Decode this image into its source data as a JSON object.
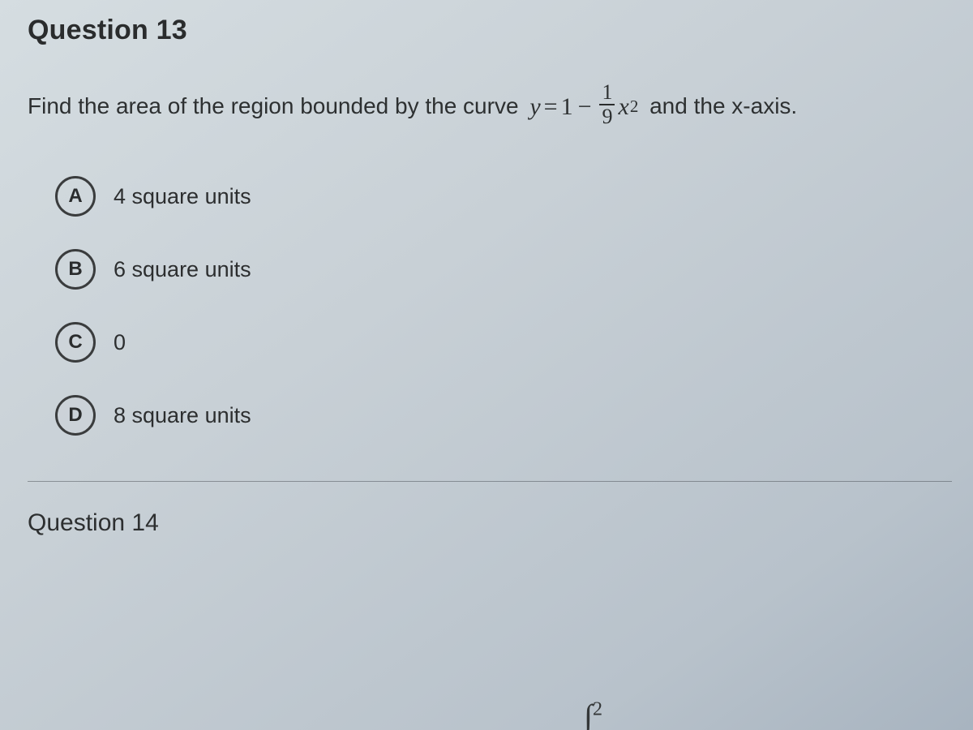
{
  "question13": {
    "title": "Question 13",
    "prompt_pre": "Find the area of the region bounded by the curve ",
    "equation": {
      "lhs_var": "y",
      "equals": "=",
      "one": "1",
      "minus": "−",
      "frac_num": "1",
      "frac_den": "9",
      "x": "x",
      "exp": "2"
    },
    "prompt_post": " and the x-axis.",
    "options": [
      {
        "letter": "A",
        "text": "4 square units"
      },
      {
        "letter": "B",
        "text": "6 square units"
      },
      {
        "letter": "C",
        "text": "0"
      },
      {
        "letter": "D",
        "text": "8 square units"
      }
    ]
  },
  "question14": {
    "title": "Question 14",
    "fragment_int": "∫",
    "fragment_exp": "2"
  },
  "colors": {
    "text": "#2a2c2d",
    "circle_border": "#3a3c3d",
    "divider": "rgba(60,65,70,0.45)",
    "bg_grad_start": "#d5dde1",
    "bg_grad_end": "#a8b4c0"
  },
  "typography": {
    "title_fontsize": 34,
    "prompt_fontsize": 28,
    "option_fontsize": 27,
    "letter_fontsize": 24
  }
}
